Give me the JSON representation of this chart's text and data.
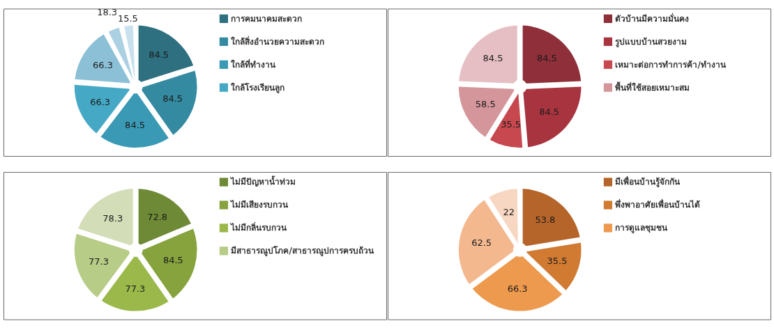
{
  "chart_data": [
    {
      "type": "pie",
      "categories": [
        "การคมนาคมสะดวก",
        "ใกล้สิ่งอำนวยความสะดวก",
        "ใกล้ที่ทำงาน",
        "ใกล้โรงเรียนลูก",
        null,
        null,
        null
      ],
      "values": [
        84.5,
        84.5,
        84.5,
        66.3,
        66.3,
        18.3,
        15.5
      ],
      "colors": [
        "#2e6f80",
        "#348aa0",
        "#3a9ab5",
        "#45a9c6",
        "#8cc0d6",
        "#abd0e1",
        "#c8e1ec"
      ],
      "data_labels": true,
      "legend": "right"
    },
    {
      "type": "pie",
      "categories": [
        "ตัวบ้านมีความมั่นคง",
        "รูปแบบบ้านสวยงาม",
        "เหมาะต่อการทำการค้า/ทำงาน",
        "พื้นที่ใช้สอยเหมาะสม",
        null
      ],
      "values": [
        84.5,
        84.5,
        35.5,
        58.5,
        84.5
      ],
      "colors": [
        "#8e2f3a",
        "#a8343f",
        "#c8484f",
        "#d4969b",
        "#e5bfc3"
      ],
      "data_labels": true,
      "legend": "right"
    },
    {
      "type": "pie",
      "categories": [
        "ไม่มีปัญหาน้ำท่วม",
        "ไม่มีเสียงรบกวน",
        "ไม่มีกลิ่นรบกวน",
        "มีสาธารณูปโภค/สาธารณูปการครบถ้วน",
        null
      ],
      "values": [
        72.8,
        84.5,
        77.3,
        77.3,
        78.3
      ],
      "colors": [
        "#6f8a36",
        "#86a33e",
        "#9ab94a",
        "#b7cc86",
        "#d3ddb8"
      ],
      "data_labels": true,
      "legend": "right"
    },
    {
      "type": "pie",
      "categories": [
        "มีเพื่อนบ้านรู้จักกัน",
        "พึ่งพาอาศัยเพื่อนบ้านได้",
        "การดูแลชุมชน",
        null,
        null
      ],
      "values": [
        53.8,
        35.5,
        66.3,
        62.5,
        22
      ],
      "colors": [
        "#b5652a",
        "#d07a32",
        "#ee9a4e",
        "#f4b88f",
        "#f8d7c2"
      ],
      "data_labels": true,
      "legend": "right"
    }
  ]
}
